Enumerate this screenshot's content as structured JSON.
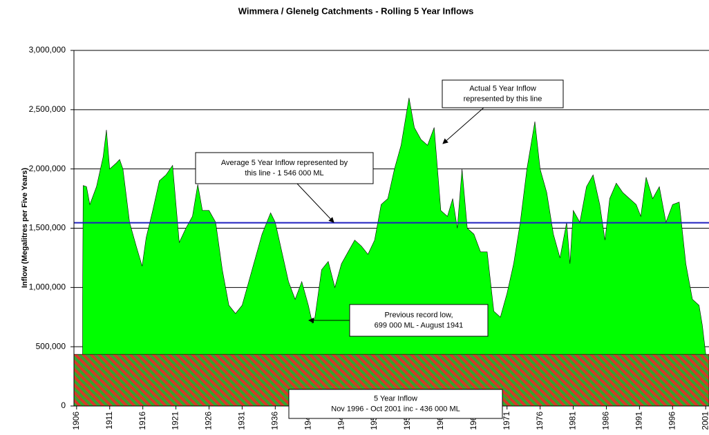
{
  "chart_data": {
    "type": "area",
    "title": "Wimmera / Glenelg Catchments - Rolling 5 Year Inflows",
    "y_label": "Inflow (Megalitres per Five Years)",
    "color": "#00ff00",
    "x": [
      1906.9,
      1907.0,
      1907.5,
      1908,
      1909,
      1910,
      1910.5,
      1911,
      1912,
      1912.5,
      1913,
      1914,
      1915,
      1915.9,
      1916.5,
      1917.5,
      1918.5,
      1919.5,
      1920.5,
      1921.5,
      1922.5,
      1923.5,
      1924.3,
      1925,
      1926,
      1927,
      1928,
      1929,
      1930,
      1931,
      1932,
      1933,
      1934,
      1935.3,
      1936,
      1937,
      1938,
      1939,
      1940,
      1941,
      1941.6,
      1942,
      1943,
      1944,
      1945,
      1946,
      1947,
      1948,
      1949,
      1950,
      1951,
      1952,
      1953,
      1954,
      1955,
      1956.2,
      1957,
      1958,
      1959,
      1960,
      1961,
      1962,
      1962.8,
      1963.5,
      1964.2,
      1965,
      1966,
      1967,
      1968,
      1969,
      1970,
      1971,
      1972,
      1973,
      1974,
      1975.2,
      1976,
      1977,
      1978,
      1979,
      1980,
      1980.5,
      1981,
      1982,
      1983,
      1984,
      1985,
      1985.8,
      1986.5,
      1987.5,
      1988.5,
      1989.5,
      1990.5,
      1991.2,
      1992,
      1993,
      1994,
      1995,
      1996,
      1997,
      1998,
      1999,
      2000,
      2000.5,
      2001
    ],
    "values": [
      900000,
      1860000,
      1850000,
      1700000,
      1850000,
      2100000,
      2330000,
      2000000,
      2050000,
      2080000,
      2000000,
      1550000,
      1350000,
      1180000,
      1420000,
      1650000,
      1900000,
      1950000,
      2030000,
      1380000,
      1500000,
      1600000,
      1870000,
      1650000,
      1650000,
      1550000,
      1150000,
      850000,
      780000,
      850000,
      1050000,
      1250000,
      1450000,
      1630000,
      1550000,
      1300000,
      1050000,
      900000,
      1050000,
      850000,
      699000,
      750000,
      1150000,
      1220000,
      1000000,
      1200000,
      1300000,
      1400000,
      1350000,
      1280000,
      1400000,
      1700000,
      1750000,
      2000000,
      2200000,
      2600000,
      2350000,
      2250000,
      2200000,
      2350000,
      1650000,
      1600000,
      1750000,
      1500000,
      2000000,
      1500000,
      1450000,
      1300000,
      1300000,
      800000,
      750000,
      950000,
      1200000,
      1550000,
      2000000,
      2400000,
      2000000,
      1800000,
      1450000,
      1250000,
      1550000,
      1200000,
      1650000,
      1550000,
      1850000,
      1950000,
      1700000,
      1400000,
      1750000,
      1880000,
      1800000,
      1750000,
      1700000,
      1600000,
      1930000,
      1750000,
      1850000,
      1550000,
      1700000,
      1720000,
      1200000,
      900000,
      850000,
      680000,
      440000
    ],
    "average": 1546000,
    "record_band": 436000,
    "xlim": [
      1905.6,
      2001.5
    ],
    "xticks": [
      1906,
      1911,
      1916,
      1921,
      1926,
      1931,
      1936,
      1941,
      1946,
      1951,
      1956,
      1961,
      1966,
      1971,
      1976,
      1981,
      1986,
      1991,
      1996,
      2001
    ],
    "ylim": [
      0,
      3000000
    ],
    "yticks": [
      0,
      {
        "value": 500000,
        "label": "500,000"
      },
      {
        "value": 1000000,
        "label": "1,000,000"
      },
      {
        "value": 1500000,
        "label": "1,500,000"
      },
      {
        "value": 2000000,
        "label": "2,000,000"
      },
      {
        "value": 2500000,
        "label": "2,500,000"
      },
      {
        "value": 3000000,
        "label": "3,000,000"
      }
    ],
    "grid": true,
    "annotations": [
      [
        "Actual 5 Year Inflow",
        "represented by this line"
      ],
      [
        "Average 5 Year Inflow represented by",
        "this line - 1 546 000 ML"
      ],
      [
        "Previous record low,",
        "699 000 ML - August 1941"
      ],
      [
        "5 Year Inflow",
        "Nov 1996 - Oct 2001 inc - 436 000 ML"
      ]
    ]
  }
}
